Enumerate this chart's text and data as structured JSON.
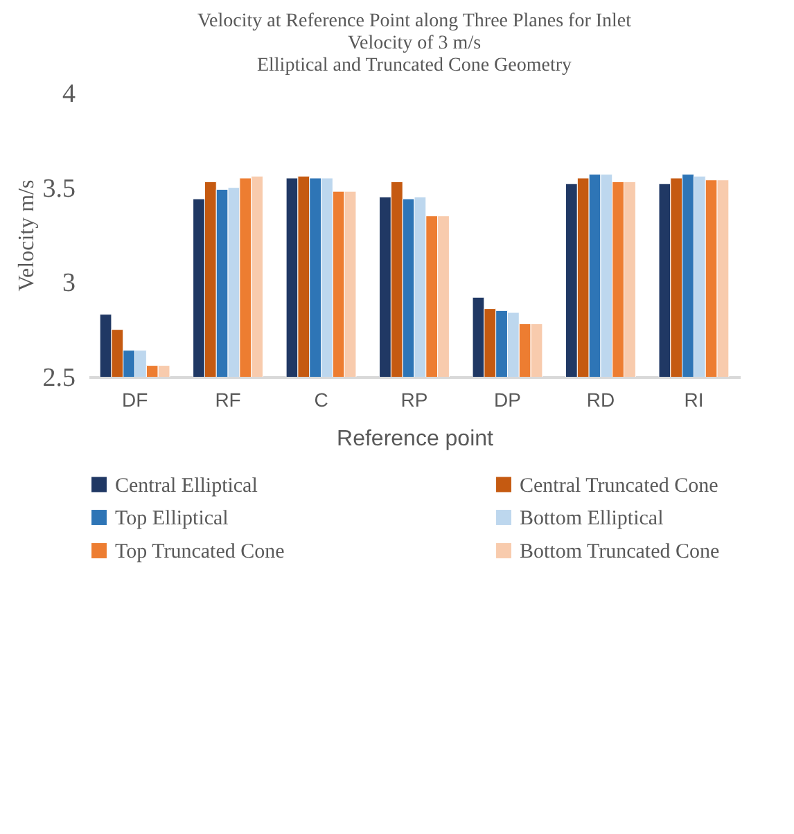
{
  "chart_data": {
    "type": "bar",
    "title": [
      "Velocity at Reference Point along Three Planes for Inlet",
      "Velocity of 3 m/s",
      "Elliptical and Truncated Cone Geometry"
    ],
    "xlabel": "Reference point",
    "ylabel": "Velocity m/s",
    "categories": [
      "DF",
      "RF",
      "C",
      "RP",
      "DP",
      "RD",
      "RI"
    ],
    "series": [
      {
        "name": "Central Elliptical",
        "color": "#203864",
        "values": [
          2.83,
          3.44,
          3.55,
          3.45,
          2.92,
          3.52,
          3.52
        ]
      },
      {
        "name": "Central Truncated Cone",
        "color": "#c55a11",
        "values": [
          2.75,
          3.53,
          3.56,
          3.53,
          2.86,
          3.55,
          3.55
        ]
      },
      {
        "name": "Top Elliptical",
        "color": "#2e75b6",
        "values": [
          2.64,
          3.49,
          3.55,
          3.44,
          2.85,
          3.57,
          3.57
        ]
      },
      {
        "name": "Bottom Elliptical",
        "color": "#bdd7ee",
        "values": [
          2.64,
          3.5,
          3.55,
          3.45,
          2.84,
          3.57,
          3.56
        ]
      },
      {
        "name": "Top Truncated Cone",
        "color": "#ed7d31",
        "values": [
          2.56,
          3.55,
          3.48,
          3.35,
          2.78,
          3.53,
          3.54
        ]
      },
      {
        "name": "Bottom Truncated Cone",
        "color": "#f8cbad",
        "values": [
          2.56,
          3.56,
          3.48,
          3.35,
          2.78,
          3.53,
          3.54
        ]
      }
    ],
    "ylim": [
      2.5,
      4
    ],
    "yticks": [
      2.5,
      3,
      3.5,
      4
    ],
    "grid": false,
    "legend": "bottom"
  }
}
